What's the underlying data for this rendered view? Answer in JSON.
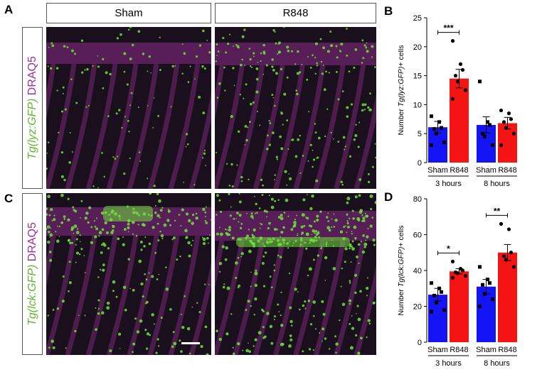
{
  "panels": {
    "A": "A",
    "B": "B",
    "C": "C",
    "D": "D"
  },
  "conditions": [
    "Sham",
    "R848"
  ],
  "rows": [
    {
      "transgene": "Tg(lyz:GFP)",
      "stain": "DRAQ5"
    },
    {
      "transgene": "Tg(lck:GFP)",
      "stain": "DRAQ5"
    }
  ],
  "colors": {
    "sham": "#1414f5",
    "r848": "#f51414",
    "gfp": "#6fe23a",
    "draq5": "#8a2c8a",
    "background_tissue": "#1a0f1c"
  },
  "chart_data": [
    {
      "type": "bar",
      "panel": "B",
      "ylabel": "Number Tg(lyz:GFP)+ cells",
      "ylim": [
        0,
        25
      ],
      "yticks": [
        0,
        5,
        10,
        15,
        20,
        25
      ],
      "groups": [
        "3 hours",
        "8 hours"
      ],
      "categories": [
        "Sham",
        "R848",
        "Sham",
        "R848"
      ],
      "values": [
        6.1,
        14.5,
        6.5,
        6.8
      ],
      "errors": [
        1.0,
        1.6,
        1.4,
        1.0
      ],
      "points": [
        [
          8.0,
          7.0,
          6.0,
          5.8,
          5.0,
          3.5,
          3.0
        ],
        [
          21.0,
          17.0,
          16.0,
          15.0,
          14.0,
          12.5,
          11.0
        ],
        [
          14.0,
          7.0,
          6.5,
          5.0,
          4.5,
          3.0
        ],
        [
          9.0,
          8.5,
          7.5,
          7.0,
          6.0,
          5.0,
          3.0
        ]
      ],
      "significance": [
        {
          "label": "***",
          "from": 0,
          "to": 1
        }
      ]
    },
    {
      "type": "bar",
      "panel": "D",
      "ylabel": "Number Tg(lck:GFP)+ cells",
      "ylim": [
        0,
        80
      ],
      "yticks": [
        0,
        20,
        40,
        60,
        80
      ],
      "groups": [
        "3 hours",
        "8 hours"
      ],
      "categories": [
        "Sham",
        "R848",
        "Sham",
        "R848"
      ],
      "values": [
        26.5,
        39.5,
        31.0,
        50.0
      ],
      "errors": [
        3.5,
        1.5,
        4.0,
        4.5
      ],
      "points": [
        [
          33.0,
          30.0,
          28.0,
          26.0,
          22.0,
          18.0,
          17.0
        ],
        [
          45.0,
          41.0,
          40.0,
          39.0,
          38.5,
          37.0,
          36.0
        ],
        [
          42.0,
          35.0,
          33.0,
          32.0,
          27.0,
          24.0,
          20.0
        ],
        [
          66.0,
          63.0,
          50.0,
          48.0,
          46.0,
          42.0
        ]
      ],
      "significance": [
        {
          "label": "*",
          "from": 0,
          "to": 1
        },
        {
          "label": "**",
          "from": 2,
          "to": 3
        }
      ]
    }
  ]
}
